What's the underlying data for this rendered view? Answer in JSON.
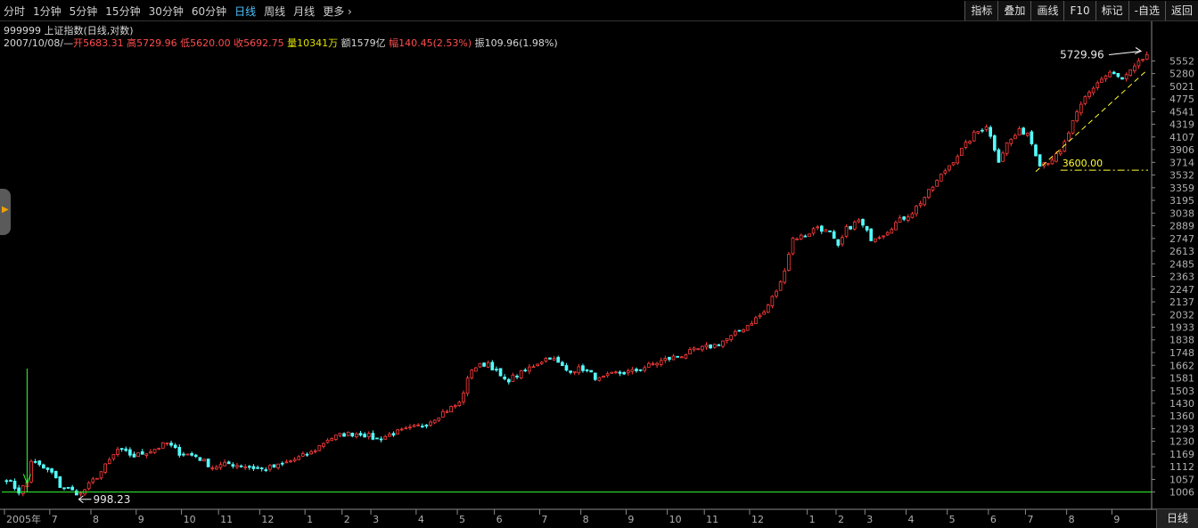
{
  "toolbar": {
    "periods": [
      "分时",
      "1分钟",
      "5分钟",
      "15分钟",
      "30分钟",
      "60分钟",
      "日线",
      "周线",
      "月线",
      "更多 ›"
    ],
    "active_period": "日线",
    "tools": [
      "指标",
      "叠加",
      "画线",
      "F10",
      "标记",
      "-自选",
      "返回"
    ]
  },
  "info": {
    "title": "999999 上证指数(日线,对数)",
    "date": "2007/10/08/—",
    "open_label": "开",
    "open": "5683.31",
    "high_label": "高",
    "high": "5729.96",
    "low_label": "低",
    "low": "5620.00",
    "close_label": "收",
    "close": "5692.75",
    "volume_label": "量",
    "volume": "10341万",
    "amount_label": "额",
    "amount": "1579亿",
    "change_label": "幅",
    "change": "140.45(2.53%)",
    "amplitude_label": "振",
    "amplitude": "109.96(1.98%)"
  },
  "bottom": {
    "right_button": "日线"
  },
  "colors": {
    "up": "#ff3c3c",
    "down": "#54ffff",
    "axis": "#b0b0b0",
    "support_line": "#33ff33",
    "trend_line": "#ffff33",
    "arrow": "#ffffff"
  },
  "chart_data": {
    "type": "candlestick",
    "scale": "log",
    "ylim": [
      980,
      5800
    ],
    "yticks": [
      1006,
      1057,
      1112,
      1169,
      1230,
      1293,
      1360,
      1430,
      1503,
      1581,
      1662,
      1748,
      1838,
      1933,
      2032,
      2137,
      2247,
      2363,
      2485,
      2613,
      2747,
      2889,
      3038,
      3195,
      3359,
      3532,
      3714,
      3906,
      4107,
      4319,
      4541,
      4775,
      5021,
      5280,
      5552
    ],
    "x_labels": [
      {
        "label": "2005年",
        "index": 0
      },
      {
        "label": "7",
        "index": 11
      },
      {
        "label": "8",
        "index": 21
      },
      {
        "label": "9",
        "index": 32
      },
      {
        "label": "10",
        "index": 43
      },
      {
        "label": "11",
        "index": 52
      },
      {
        "label": "12",
        "index": 62
      },
      {
        "label": "1",
        "index": 73
      },
      {
        "label": "2",
        "index": 82
      },
      {
        "label": "3",
        "index": 89
      },
      {
        "label": "4",
        "index": 100
      },
      {
        "label": "5",
        "index": 110
      },
      {
        "label": "6",
        "index": 119
      },
      {
        "label": "7",
        "index": 130
      },
      {
        "label": "8",
        "index": 140
      },
      {
        "label": "9",
        "index": 151
      },
      {
        "label": "10",
        "index": 161
      },
      {
        "label": "11",
        "index": 170
      },
      {
        "label": "12",
        "index": 181
      },
      {
        "label": "1",
        "index": 195
      },
      {
        "label": "2",
        "index": 202
      },
      {
        "label": "3",
        "index": 209
      },
      {
        "label": "4",
        "index": 219
      },
      {
        "label": "5",
        "index": 229
      },
      {
        "label": "6",
        "index": 239
      },
      {
        "label": "7",
        "index": 248
      },
      {
        "label": "8",
        "index": 258
      },
      {
        "label": "9",
        "index": 269
      }
    ],
    "total_bars": 278,
    "anchors": [
      [
        0,
        1060
      ],
      [
        3,
        1008
      ],
      [
        5,
        1045
      ],
      [
        6,
        1140
      ],
      [
        8,
        1115
      ],
      [
        11,
        1085
      ],
      [
        13,
        1030
      ],
      [
        16,
        1010
      ],
      [
        18,
        998
      ],
      [
        23,
        1090
      ],
      [
        27,
        1190
      ],
      [
        31,
        1160
      ],
      [
        35,
        1185
      ],
      [
        39,
        1220
      ],
      [
        42,
        1175
      ],
      [
        46,
        1160
      ],
      [
        50,
        1110
      ],
      [
        54,
        1125
      ],
      [
        58,
        1115
      ],
      [
        62,
        1100
      ],
      [
        66,
        1115
      ],
      [
        70,
        1145
      ],
      [
        74,
        1175
      ],
      [
        78,
        1240
      ],
      [
        82,
        1265
      ],
      [
        86,
        1270
      ],
      [
        90,
        1240
      ],
      [
        94,
        1270
      ],
      [
        98,
        1290
      ],
      [
        102,
        1320
      ],
      [
        106,
        1380
      ],
      [
        110,
        1430
      ],
      [
        113,
        1640
      ],
      [
        117,
        1680
      ],
      [
        121,
        1560
      ],
      [
        125,
        1610
      ],
      [
        129,
        1680
      ],
      [
        132,
        1720
      ],
      [
        136,
        1630
      ],
      [
        140,
        1640
      ],
      [
        144,
        1570
      ],
      [
        148,
        1610
      ],
      [
        152,
        1620
      ],
      [
        156,
        1660
      ],
      [
        160,
        1700
      ],
      [
        164,
        1730
      ],
      [
        168,
        1770
      ],
      [
        172,
        1800
      ],
      [
        176,
        1860
      ],
      [
        180,
        1950
      ],
      [
        184,
        2050
      ],
      [
        188,
        2300
      ],
      [
        191,
        2750
      ],
      [
        194,
        2780
      ],
      [
        197,
        2880
      ],
      [
        200,
        2800
      ],
      [
        202,
        2650
      ],
      [
        204,
        2850
      ],
      [
        207,
        2950
      ],
      [
        210,
        2750
      ],
      [
        213,
        2800
      ],
      [
        216,
        2920
      ],
      [
        220,
        3050
      ],
      [
        224,
        3300
      ],
      [
        228,
        3600
      ],
      [
        232,
        3900
      ],
      [
        235,
        4150
      ],
      [
        238,
        4300
      ],
      [
        241,
        3750
      ],
      [
        243,
        4000
      ],
      [
        246,
        4200
      ],
      [
        248,
        4180
      ],
      [
        251,
        3700
      ],
      [
        253,
        3730
      ],
      [
        256,
        3850
      ],
      [
        259,
        4350
      ],
      [
        262,
        4800
      ],
      [
        265,
        5100
      ],
      [
        268,
        5300
      ],
      [
        271,
        5150
      ],
      [
        274,
        5400
      ],
      [
        277,
        5692
      ]
    ],
    "annotations": [
      {
        "text": "5729.96",
        "kind": "high",
        "index": 276,
        "value": 5729.96
      },
      {
        "text": "998.23",
        "kind": "low",
        "index": 18,
        "value": 998.23
      },
      {
        "text": "3600.00",
        "kind": "level",
        "value": 3600
      }
    ],
    "support_level": 1006,
    "trend_line": [
      [
        250,
        3580
      ],
      [
        277,
        5350
      ]
    ]
  }
}
